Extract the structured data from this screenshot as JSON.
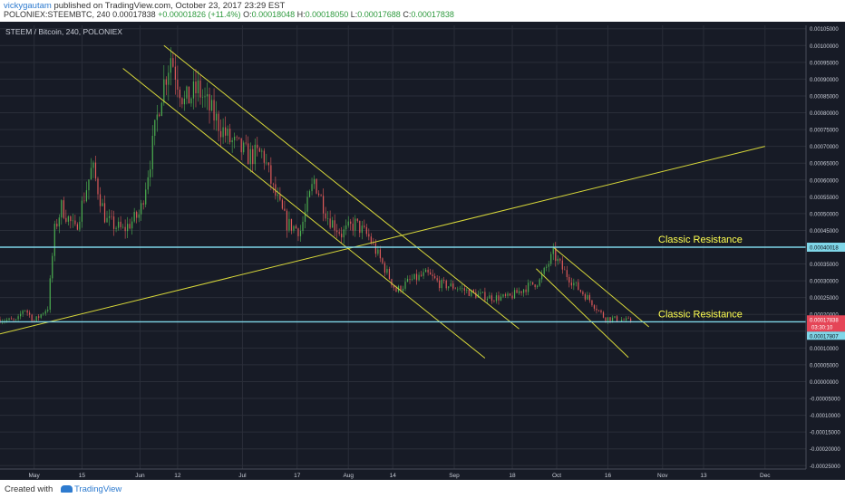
{
  "header": {
    "author": "vickygautam",
    "published": "published on TradingView.com, October 23, 2017 23:29 EST",
    "symbol": "POLONIEX:STEEMBTC, 240",
    "last": "0.00017838",
    "change": "+0.00001826 (+11.4%)",
    "o_label": "O:",
    "o": "0.00018048",
    "h_label": "H:",
    "h": "0.00018050",
    "l_label": "L:",
    "l": "0.00017688",
    "c_label": "C:",
    "c": "0.00017838"
  },
  "footer": {
    "created_with": "Created with",
    "brand": "TradingView"
  },
  "colors": {
    "background": "#171b26",
    "grid": "#2a2e39",
    "up": "#4caf50",
    "down": "#e05a5a",
    "trendline": "#d8d83a",
    "resistance_line": "#7fd6e8",
    "annotation": "#ffff50",
    "last_price_badge": "#e54557",
    "resistance_badge": "#7fd6e8"
  },
  "chart_data": {
    "type": "candlestick",
    "title": "STEEM / Bitcoin, 240, POLONIEX",
    "y_unit": "BTC",
    "ylim": [
      -0.00026,
      0.00106
    ],
    "y_ticks": [
      "0.00105000",
      "0.00100000",
      "0.00095000",
      "0.00090000",
      "0.00085000",
      "0.00080000",
      "0.00075000",
      "0.00070000",
      "0.00065000",
      "0.00060000",
      "0.00055000",
      "0.00050000",
      "0.00045000",
      "0.00040000",
      "0.00035000",
      "0.00030000",
      "0.00025000",
      "0.00020000",
      "0.00015000",
      "0.00010000",
      "0.00005000",
      "0.00000000",
      "-0.00005000",
      "-0.00010000",
      "-0.00015000",
      "-0.00020000",
      "-0.00025000"
    ],
    "x_ticks": [
      {
        "label": "May",
        "date": "2017-05-01"
      },
      {
        "label": "15",
        "date": "2017-05-15"
      },
      {
        "label": "Jun",
        "date": "2017-06-01"
      },
      {
        "label": "12",
        "date": "2017-06-12"
      },
      {
        "label": "Jul",
        "date": "2017-07-01"
      },
      {
        "label": "17",
        "date": "2017-07-17"
      },
      {
        "label": "Aug",
        "date": "2017-08-01"
      },
      {
        "label": "14",
        "date": "2017-08-14"
      },
      {
        "label": "Sep",
        "date": "2017-09-01"
      },
      {
        "label": "18",
        "date": "2017-09-18"
      },
      {
        "label": "Oct",
        "date": "2017-10-01"
      },
      {
        "label": "16",
        "date": "2017-10-16"
      },
      {
        "label": "Nov",
        "date": "2017-11-01"
      },
      {
        "label": "13",
        "date": "2017-11-13"
      },
      {
        "label": "Dec",
        "date": "2017-12-01"
      }
    ],
    "xlim": [
      "2017-04-21",
      "2017-12-13"
    ],
    "price_path": [
      [
        "2017-04-21",
        0.000185
      ],
      [
        "2017-04-26",
        0.00018
      ],
      [
        "2017-04-28",
        0.00022
      ],
      [
        "2017-05-01",
        0.00018
      ],
      [
        "2017-05-05",
        0.00022
      ],
      [
        "2017-05-07",
        0.00045
      ],
      [
        "2017-05-09",
        0.00052
      ],
      [
        "2017-05-13",
        0.00045
      ],
      [
        "2017-05-18",
        0.00064
      ],
      [
        "2017-05-22",
        0.00048
      ],
      [
        "2017-05-27",
        0.00045
      ],
      [
        "2017-06-01",
        0.0005
      ],
      [
        "2017-06-04",
        0.00066
      ],
      [
        "2017-06-07",
        0.00085
      ],
      [
        "2017-06-10",
        0.00097
      ],
      [
        "2017-06-14",
        0.00083
      ],
      [
        "2017-06-18",
        0.00087
      ],
      [
        "2017-06-22",
        0.0008
      ],
      [
        "2017-06-27",
        0.00072
      ],
      [
        "2017-07-03",
        0.00067
      ],
      [
        "2017-07-07",
        0.00068
      ],
      [
        "2017-07-10",
        0.00057
      ],
      [
        "2017-07-14",
        0.00047
      ],
      [
        "2017-07-18",
        0.00045
      ],
      [
        "2017-07-22",
        0.0006
      ],
      [
        "2017-07-26",
        0.00049
      ],
      [
        "2017-07-30",
        0.00044
      ],
      [
        "2017-08-03",
        0.00047
      ],
      [
        "2017-08-07",
        0.00043
      ],
      [
        "2017-08-11",
        0.00035
      ],
      [
        "2017-08-15",
        0.00027
      ],
      [
        "2017-08-19",
        0.0003
      ],
      [
        "2017-08-24",
        0.00032
      ],
      [
        "2017-08-28",
        0.00029
      ],
      [
        "2017-09-02",
        0.00028
      ],
      [
        "2017-09-07",
        0.00026
      ],
      [
        "2017-09-12",
        0.00025
      ],
      [
        "2017-09-17",
        0.00025
      ],
      [
        "2017-09-22",
        0.00028
      ],
      [
        "2017-09-26",
        0.0003
      ],
      [
        "2017-09-30",
        0.00038
      ],
      [
        "2017-10-03",
        0.00033
      ],
      [
        "2017-10-07",
        0.00028
      ],
      [
        "2017-10-11",
        0.00024
      ],
      [
        "2017-10-15",
        0.00019
      ],
      [
        "2017-10-19",
        0.000185
      ],
      [
        "2017-10-23",
        0.00017838
      ]
    ],
    "trendlines": [
      {
        "from": [
          "2017-04-21",
          0.000142
        ],
        "to": [
          "2017-12-01",
          0.0007
        ]
      },
      {
        "from": [
          "2017-05-27",
          0.000932
        ],
        "to": [
          "2017-09-10",
          7e-05
        ]
      },
      {
        "from": [
          "2017-06-08",
          0.001
        ],
        "to": [
          "2017-09-20",
          0.000157
        ]
      },
      {
        "from": [
          "2017-09-25",
          0.000336
        ],
        "to": [
          "2017-10-22",
          7.2e-05
        ]
      },
      {
        "from": [
          "2017-09-30",
          0.0004
        ],
        "to": [
          "2017-10-28",
          0.000163
        ]
      }
    ],
    "horizontal_lines": [
      {
        "price": 0.0004,
        "label": "Classic Resistance",
        "badge": "0.00040018"
      },
      {
        "price": 0.000178,
        "label": "Classic Resistance",
        "badge": "0.00017838"
      }
    ],
    "price_badges": {
      "last": "0.00017838",
      "countdown": "03:30:10",
      "previous": "0.00017807"
    }
  }
}
